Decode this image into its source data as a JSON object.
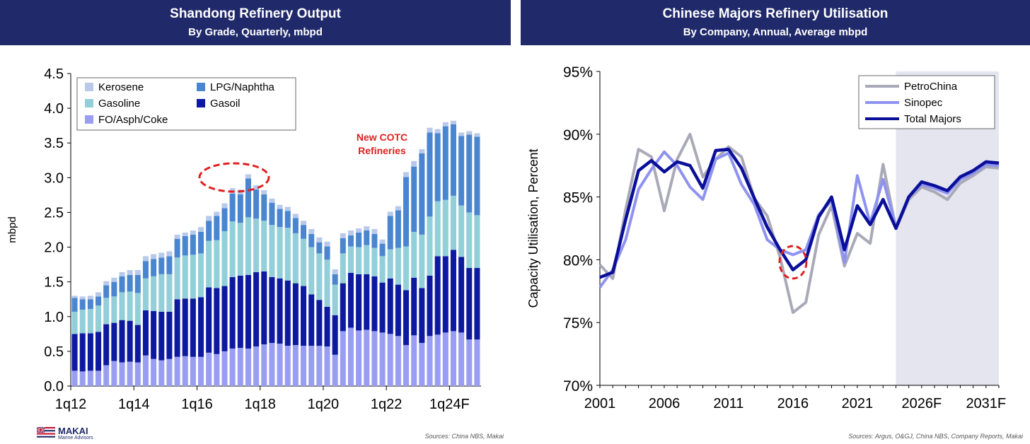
{
  "colors": {
    "header_bg": "#202a6b",
    "kerosene": "#b9c9ea",
    "lpg_naphtha": "#4a86d0",
    "gasoline": "#92cfd9",
    "gasoil": "#0d1aa0",
    "fo_asph_coke": "#9a9ef2",
    "petrochina": "#a9a9b8",
    "sinopec": "#8f93f0",
    "total_majors": "#0a0f9a",
    "highlight": "#e02020",
    "forecast_shade": "#e4e5ef"
  },
  "logo": {
    "name": "MAKAI",
    "sub": "Marine Advisors"
  },
  "left": {
    "title": "Shandong Refinery Output",
    "subtitle": "By Grade, Quarterly, mbpd",
    "source": "Sources: China NBS, Makai",
    "annotation": [
      "New COTC",
      "Refineries"
    ]
  },
  "right": {
    "title": "Chinese Majors Refinery Utilisation",
    "subtitle": "By Company, Annual, Average mbpd",
    "source": "Sources: Argus, O&GJ, China NBS, Company Reports, Makai"
  },
  "chart_data": [
    {
      "type": "bar",
      "stacked": true,
      "ylabel": "mbpd",
      "ylim": [
        0,
        4.5
      ],
      "yticks": [
        "0.0",
        "0.5",
        "1.0",
        "1.5",
        "2.0",
        "2.5",
        "3.0",
        "3.5",
        "4.0",
        "4.5"
      ],
      "xtick_labels": [
        "1q12",
        "1q14",
        "1q16",
        "1q18",
        "1q20",
        "1q22",
        "1q24F"
      ],
      "categories": [
        "1q12",
        "2q12",
        "3q12",
        "4q12",
        "1q13",
        "2q13",
        "3q13",
        "4q13",
        "1q14",
        "2q14",
        "3q14",
        "4q14",
        "1q15",
        "2q15",
        "3q15",
        "4q15",
        "1q16",
        "2q16",
        "3q16",
        "4q16",
        "1q17",
        "2q17",
        "3q17",
        "4q17",
        "1q18",
        "2q18",
        "3q18",
        "4q18",
        "1q19",
        "2q19",
        "3q19",
        "4q19",
        "1q20",
        "2q20",
        "3q20",
        "4q20",
        "1q21",
        "2q21",
        "3q21",
        "4q21",
        "1q22",
        "2q22",
        "3q22",
        "4q22",
        "1q23",
        "2q23",
        "3q23",
        "4q23",
        "1q24F",
        "2q24F",
        "3q24F",
        "4q24F"
      ],
      "legend_position": "top-left",
      "series": [
        {
          "name": "FO/Asph/Coke",
          "color_key": "fo_asph_coke",
          "values": [
            0.22,
            0.21,
            0.22,
            0.22,
            0.3,
            0.36,
            0.34,
            0.35,
            0.34,
            0.44,
            0.39,
            0.37,
            0.39,
            0.42,
            0.43,
            0.42,
            0.42,
            0.48,
            0.46,
            0.5,
            0.54,
            0.55,
            0.54,
            0.57,
            0.6,
            0.62,
            0.61,
            0.58,
            0.59,
            0.58,
            0.58,
            0.58,
            0.57,
            0.45,
            0.79,
            0.84,
            0.8,
            0.81,
            0.79,
            0.77,
            0.75,
            0.72,
            0.59,
            0.73,
            0.62,
            0.72,
            0.74,
            0.77,
            0.79,
            0.77,
            0.67,
            0.67
          ]
        },
        {
          "name": "Gasoil",
          "color_key": "gasoil",
          "values": [
            0.53,
            0.55,
            0.54,
            0.56,
            0.59,
            0.55,
            0.61,
            0.59,
            0.54,
            0.65,
            0.69,
            0.7,
            0.68,
            0.83,
            0.83,
            0.84,
            0.86,
            0.94,
            0.95,
            0.94,
            1.03,
            1.04,
            1.06,
            1.07,
            1.05,
            0.95,
            0.94,
            0.94,
            0.89,
            0.86,
            0.74,
            0.66,
            0.57,
            0.57,
            0.69,
            0.79,
            0.81,
            0.8,
            0.79,
            0.72,
            0.8,
            0.74,
            0.79,
            0.83,
            0.79,
            0.87,
            1.13,
            1.1,
            1.17,
            1.09,
            1.03,
            1.03
          ]
        },
        {
          "name": "Gasoline",
          "color_key": "gasoline",
          "values": [
            0.32,
            0.34,
            0.35,
            0.38,
            0.38,
            0.38,
            0.4,
            0.42,
            0.46,
            0.46,
            0.5,
            0.54,
            0.54,
            0.6,
            0.62,
            0.63,
            0.63,
            0.67,
            0.69,
            0.79,
            0.8,
            0.76,
            0.83,
            0.77,
            0.73,
            0.75,
            0.74,
            0.76,
            0.72,
            0.68,
            0.68,
            0.67,
            0.68,
            0.44,
            0.43,
            0.38,
            0.39,
            0.42,
            0.41,
            0.38,
            0.42,
            0.53,
            0.63,
            0.66,
            0.77,
            0.85,
            0.79,
            0.81,
            0.78,
            0.74,
            0.8,
            0.76
          ]
        },
        {
          "name": "LPG/Naphtha",
          "color_key": "lpg_naphtha",
          "values": [
            0.2,
            0.15,
            0.14,
            0.13,
            0.18,
            0.21,
            0.23,
            0.24,
            0.26,
            0.25,
            0.25,
            0.24,
            0.26,
            0.27,
            0.28,
            0.29,
            0.31,
            0.29,
            0.35,
            0.33,
            0.4,
            0.41,
            0.56,
            0.42,
            0.38,
            0.32,
            0.26,
            0.24,
            0.22,
            0.2,
            0.19,
            0.16,
            0.19,
            0.15,
            0.22,
            0.16,
            0.21,
            0.21,
            0.2,
            0.18,
            0.48,
            0.54,
            1.0,
            0.94,
            1.17,
            1.21,
            0.98,
            1.06,
            1.03,
            1.0,
            1.12,
            1.13
          ]
        },
        {
          "name": "Kerosene",
          "color_key": "kerosene",
          "values": [
            0.03,
            0.04,
            0.05,
            0.06,
            0.06,
            0.06,
            0.06,
            0.07,
            0.07,
            0.07,
            0.07,
            0.07,
            0.07,
            0.06,
            0.05,
            0.06,
            0.07,
            0.07,
            0.06,
            0.07,
            0.08,
            0.07,
            0.06,
            0.06,
            0.06,
            0.06,
            0.06,
            0.06,
            0.06,
            0.06,
            0.07,
            0.07,
            0.07,
            0.07,
            0.07,
            0.07,
            0.06,
            0.06,
            0.07,
            0.06,
            0.06,
            0.06,
            0.07,
            0.08,
            0.06,
            0.07,
            0.06,
            0.06,
            0.05,
            0.05,
            0.05,
            0.05
          ]
        }
      ]
    },
    {
      "type": "line",
      "ylabel": "Capacity Utilisation, Percent",
      "ylim": [
        70,
        95
      ],
      "yticks": [
        "70%",
        "75%",
        "80%",
        "85%",
        "90%",
        "95%"
      ],
      "xlim": [
        2001,
        2032
      ],
      "xtick_labels": [
        "2001",
        "2006",
        "2011",
        "2016",
        "2021",
        "2026F",
        "2031F"
      ],
      "forecast_from": 2024,
      "legend_position": "top-right",
      "x": [
        2001,
        2002,
        2003,
        2004,
        2005,
        2006,
        2007,
        2008,
        2009,
        2010,
        2011,
        2012,
        2013,
        2014,
        2015,
        2016,
        2017,
        2018,
        2019,
        2020,
        2021,
        2022,
        2023,
        2024,
        2025,
        2026,
        2027,
        2028,
        2029,
        2030,
        2031,
        2032
      ],
      "series": [
        {
          "name": "PetroChina",
          "color_key": "petrochina",
          "values": [
            79.6,
            78.5,
            84.0,
            88.8,
            88.2,
            83.9,
            88.0,
            90.0,
            86.6,
            88.0,
            89.0,
            88.2,
            84.9,
            83.5,
            80.2,
            75.8,
            76.6,
            82.0,
            84.3,
            79.5,
            82.1,
            81.3,
            87.6,
            82.5,
            84.8,
            85.8,
            85.4,
            84.8,
            86.1,
            86.7,
            87.4,
            87.3
          ]
        },
        {
          "name": "Sinopec",
          "color_key": "sinopec",
          "values": [
            77.8,
            79.2,
            81.6,
            85.6,
            87.2,
            88.6,
            87.5,
            85.8,
            84.8,
            88.0,
            88.5,
            86.0,
            84.4,
            81.6,
            80.8,
            80.4,
            80.8,
            83.6,
            84.7,
            79.8,
            86.7,
            82.9,
            86.4,
            82.6,
            85.0,
            86.0,
            85.7,
            85.3,
            86.4,
            86.9,
            87.6,
            87.5
          ]
        },
        {
          "name": "Total Majors",
          "color_key": "total_majors",
          "values": [
            78.6,
            79.0,
            83.2,
            87.1,
            87.9,
            87.0,
            87.8,
            87.5,
            85.7,
            88.7,
            88.8,
            87.3,
            84.9,
            82.6,
            80.8,
            79.2,
            80.0,
            83.4,
            85.0,
            80.8,
            84.3,
            82.8,
            84.8,
            82.5,
            85.0,
            86.2,
            85.9,
            85.5,
            86.6,
            87.1,
            87.8,
            87.7
          ]
        }
      ]
    }
  ]
}
